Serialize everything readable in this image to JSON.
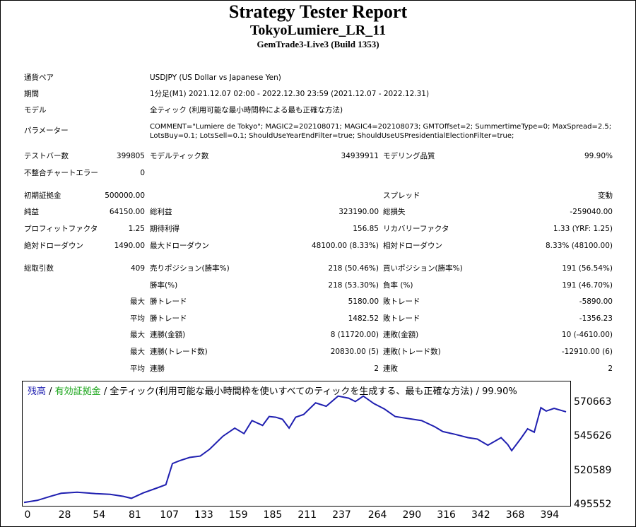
{
  "header": {
    "title": "Strategy Tester Report",
    "subtitle": "TokyoLumiere_LR_11",
    "server": "GemTrade3-Live3 (Build 1353)"
  },
  "info": {
    "symbol_label": "通貨ペア",
    "symbol": "USDJPY (US Dollar vs Japanese Yen)",
    "period_label": "期間",
    "period": "1分足(M1) 2021.12.07 02:00 - 2022.12.30 23:59 (2021.12.07 - 2022.12.31)",
    "model_label": "モデル",
    "model": "全ティック (利用可能な最小時間枠による最も正確な方法)",
    "params_label": "パラメーター",
    "params_line1": "COMMENT=\"Lumiere de Tokyo\"; MAGIC2=202108071; MAGIC4=202108073; GMTOffset=2; SummertimeType=0; MaxSpread=2.5;",
    "params_line2": "LotsBuy=0.1; LotsSell=0.1; ShouldUseYearEndFilter=true; ShouldUseUSPresidentialElectionFilter=true;"
  },
  "stats": {
    "bars_label": "テストバー数",
    "bars": "399805",
    "ticks_label": "モデルティック数",
    "ticks": "34939911",
    "quality_label": "モデリング品質",
    "quality": "99.90%",
    "mismatch_label": "不整合チャートエラー",
    "mismatch": "0",
    "deposit_label": "初期証拠金",
    "deposit": "500000.00",
    "spread_label": "スプレッド",
    "spread": "変動",
    "net_label": "純益",
    "net": "64150.00",
    "gross_profit_label": "総利益",
    "gross_profit": "323190.00",
    "gross_loss_label": "総損失",
    "gross_loss": "-259040.00",
    "pf_label": "プロフィットファクタ",
    "pf": "1.25",
    "expected_label": "期待利得",
    "expected": "156.85",
    "recovery_label": "リカバリーファクタ",
    "recovery": "1.33 (YRF: 1.25)",
    "abs_dd_label": "絶対ドローダウン",
    "abs_dd": "1490.00",
    "max_dd_label": "最大ドローダウン",
    "max_dd": "48100.00 (8.33%)",
    "rel_dd_label": "相対ドローダウン",
    "rel_dd": "8.33% (48100.00)",
    "trades_label": "総取引数",
    "trades": "409",
    "short_label": "売りポジション(勝率%)",
    "short": "218 (50.46%)",
    "long_label": "買いポジション(勝率%)",
    "long": "191 (56.54%)",
    "winrate_label": "勝率(%)",
    "winrate": "218 (53.30%)",
    "lossrate_label": "負率 (%)",
    "lossrate": "191 (46.70%)",
    "max_label": "最大",
    "avg_label": "平均",
    "win_trade_label": "勝トレード",
    "lose_trade_label": "敗トレード",
    "max_win": "5180.00",
    "max_loss": "-5890.00",
    "avg_win": "1482.52",
    "avg_loss": "-1356.23",
    "cons_win_amt_label": "連勝(金額)",
    "cons_win_amt": "8 (11720.00)",
    "cons_loss_amt_label": "連敗(金額)",
    "cons_loss_amt": "10 (-4610.00)",
    "cons_win_cnt_label": "連勝(トレード数)",
    "cons_win_cnt": "20830.00 (5)",
    "cons_loss_cnt_label": "連敗(トレード数)",
    "cons_loss_cnt": "-12910.00 (6)",
    "win_streak_label": "連勝",
    "win_streak": "2",
    "loss_streak_label": "連敗",
    "loss_streak": "2"
  },
  "chart_data": {
    "type": "line",
    "legend_balance": "残高",
    "legend_sep1": " / ",
    "legend_equity": "有効証拠金",
    "legend_rest": " / 全ティック(利用可能な最小時間枠を使いすべてのティックを生成する、最も正確な方法) / 99.90%",
    "colors": {
      "balance": "#1f1fb0",
      "equity": "#1aa51a"
    },
    "y_ticks": [
      "570663",
      "545626",
      "520589",
      "495552"
    ],
    "y_tick_values": [
      570663,
      545626,
      520589,
      495552
    ],
    "x_ticks": [
      "0",
      "28",
      "54",
      "81",
      "107",
      "133",
      "159",
      "185",
      "211",
      "237",
      "264",
      "290",
      "316",
      "342",
      "368",
      "394"
    ],
    "x_tick_values": [
      0,
      28,
      54,
      81,
      107,
      133,
      159,
      185,
      211,
      237,
      264,
      290,
      316,
      342,
      368,
      394
    ],
    "xlim": [
      0,
      409
    ],
    "ylim": [
      495552,
      577000
    ],
    "x": [
      0,
      10,
      20,
      28,
      40,
      54,
      65,
      75,
      81,
      90,
      100,
      107,
      112,
      117,
      125,
      133,
      140,
      150,
      159,
      166,
      172,
      180,
      185,
      190,
      195,
      200,
      205,
      211,
      220,
      228,
      237,
      245,
      250,
      256,
      264,
      272,
      280,
      290,
      300,
      310,
      316,
      325,
      335,
      342,
      350,
      360,
      365,
      368,
      375,
      380,
      385,
      390,
      394,
      400,
      409
    ],
    "y": [
      497500,
      499000,
      502000,
      504200,
      505000,
      504000,
      503500,
      502000,
      500500,
      504500,
      508000,
      510500,
      526000,
      528000,
      530500,
      531500,
      536500,
      546000,
      552000,
      548000,
      557500,
      554000,
      560500,
      560000,
      558500,
      552000,
      560000,
      562000,
      570500,
      568000,
      575500,
      574000,
      571500,
      575500,
      570000,
      566000,
      560500,
      559000,
      557500,
      553000,
      549500,
      547500,
      545000,
      544000,
      539500,
      545000,
      540000,
      535500,
      544500,
      551500,
      549000,
      567000,
      564500,
      566500,
      564000
    ]
  }
}
